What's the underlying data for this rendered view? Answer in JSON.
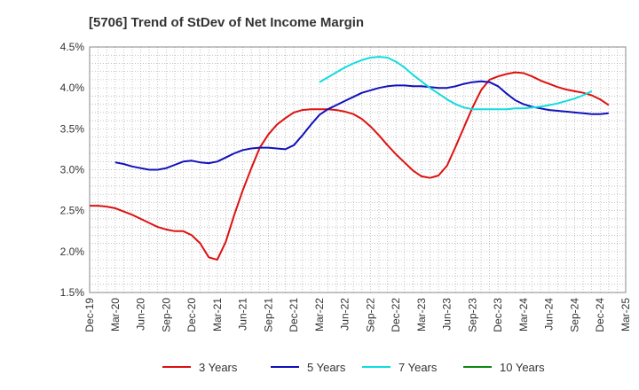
{
  "chart_data": {
    "type": "line",
    "title": "[5706]  Trend of StDev of Net Income Margin",
    "xlabel": "",
    "ylabel": "",
    "x_ticks": [
      "Dec-19",
      "Mar-20",
      "Jun-20",
      "Sep-20",
      "Dec-20",
      "Mar-21",
      "Jun-21",
      "Sep-21",
      "Dec-21",
      "Mar-22",
      "Jun-22",
      "Sep-22",
      "Dec-22",
      "Mar-23",
      "Jun-23",
      "Sep-23",
      "Dec-23",
      "Mar-24",
      "Jun-24",
      "Sep-24",
      "Dec-24",
      "Mar-25"
    ],
    "y_ticks": [
      "1.5%",
      "2.0%",
      "2.5%",
      "3.0%",
      "3.5%",
      "4.0%",
      "4.5%"
    ],
    "ylim": [
      1.5,
      4.5
    ],
    "y_unit": "%",
    "grid": true,
    "legend_position": "bottom",
    "series": [
      {
        "name": "3 Years",
        "color": "#dd1111",
        "points": [
          [
            "Dec-19",
            2.56
          ],
          [
            "Jan-20",
            2.56
          ],
          [
            "Feb-20",
            2.55
          ],
          [
            "Mar-20",
            2.53
          ],
          [
            "Apr-20",
            2.49
          ],
          [
            "May-20",
            2.45
          ],
          [
            "Jun-20",
            2.4
          ],
          [
            "Jul-20",
            2.35
          ],
          [
            "Aug-20",
            2.3
          ],
          [
            "Sep-20",
            2.27
          ],
          [
            "Oct-20",
            2.25
          ],
          [
            "Nov-20",
            2.25
          ],
          [
            "Dec-20",
            2.2
          ],
          [
            "Jan-21",
            2.1
          ],
          [
            "Feb-21",
            1.93
          ],
          [
            "Mar-21",
            1.9
          ],
          [
            "Apr-21",
            2.12
          ],
          [
            "May-21",
            2.45
          ],
          [
            "Jun-21",
            2.75
          ],
          [
            "Jul-21",
            3.02
          ],
          [
            "Aug-21",
            3.27
          ],
          [
            "Sep-21",
            3.43
          ],
          [
            "Oct-21",
            3.55
          ],
          [
            "Nov-21",
            3.63
          ],
          [
            "Dec-21",
            3.7
          ],
          [
            "Jan-22",
            3.73
          ],
          [
            "Feb-22",
            3.74
          ],
          [
            "Mar-22",
            3.74
          ],
          [
            "Apr-22",
            3.74
          ],
          [
            "May-22",
            3.73
          ],
          [
            "Jun-22",
            3.71
          ],
          [
            "Jul-22",
            3.68
          ],
          [
            "Aug-22",
            3.62
          ],
          [
            "Sep-22",
            3.53
          ],
          [
            "Oct-22",
            3.42
          ],
          [
            "Nov-22",
            3.3
          ],
          [
            "Dec-22",
            3.19
          ],
          [
            "Jan-23",
            3.09
          ],
          [
            "Feb-23",
            2.99
          ],
          [
            "Mar-23",
            2.92
          ],
          [
            "Apr-23",
            2.9
          ],
          [
            "May-23",
            2.93
          ],
          [
            "Jun-23",
            3.05
          ],
          [
            "Jul-23",
            3.28
          ],
          [
            "Aug-23",
            3.52
          ],
          [
            "Sep-23",
            3.76
          ],
          [
            "Oct-23",
            3.97
          ],
          [
            "Nov-23",
            4.1
          ],
          [
            "Dec-23",
            4.14
          ],
          [
            "Jan-24",
            4.17
          ],
          [
            "Feb-24",
            4.19
          ],
          [
            "Mar-24",
            4.18
          ],
          [
            "Apr-24",
            4.14
          ],
          [
            "May-24",
            4.09
          ],
          [
            "Jun-24",
            4.05
          ],
          [
            "Jul-24",
            4.01
          ],
          [
            "Aug-24",
            3.98
          ],
          [
            "Sep-24",
            3.96
          ],
          [
            "Oct-24",
            3.94
          ],
          [
            "Nov-24",
            3.91
          ],
          [
            "Dec-24",
            3.86
          ],
          [
            "Jan-25",
            3.79
          ]
        ]
      },
      {
        "name": "5 Years",
        "color": "#1111bb",
        "points": [
          [
            "Mar-20",
            3.09
          ],
          [
            "Apr-20",
            3.07
          ],
          [
            "May-20",
            3.04
          ],
          [
            "Jun-20",
            3.02
          ],
          [
            "Jul-20",
            3.0
          ],
          [
            "Aug-20",
            3.0
          ],
          [
            "Sep-20",
            3.02
          ],
          [
            "Oct-20",
            3.06
          ],
          [
            "Nov-20",
            3.1
          ],
          [
            "Dec-20",
            3.11
          ],
          [
            "Jan-21",
            3.09
          ],
          [
            "Feb-21",
            3.08
          ],
          [
            "Mar-21",
            3.1
          ],
          [
            "Apr-21",
            3.15
          ],
          [
            "May-21",
            3.2
          ],
          [
            "Jun-21",
            3.24
          ],
          [
            "Jul-21",
            3.26
          ],
          [
            "Aug-21",
            3.27
          ],
          [
            "Sep-21",
            3.27
          ],
          [
            "Oct-21",
            3.26
          ],
          [
            "Nov-21",
            3.25
          ],
          [
            "Dec-21",
            3.3
          ],
          [
            "Jan-22",
            3.42
          ],
          [
            "Feb-22",
            3.55
          ],
          [
            "Mar-22",
            3.67
          ],
          [
            "Apr-22",
            3.74
          ],
          [
            "May-22",
            3.79
          ],
          [
            "Jun-22",
            3.84
          ],
          [
            "Jul-22",
            3.89
          ],
          [
            "Aug-22",
            3.94
          ],
          [
            "Sep-22",
            3.97
          ],
          [
            "Oct-22",
            4.0
          ],
          [
            "Nov-22",
            4.02
          ],
          [
            "Dec-22",
            4.03
          ],
          [
            "Jan-23",
            4.03
          ],
          [
            "Feb-23",
            4.02
          ],
          [
            "Mar-23",
            4.02
          ],
          [
            "Apr-23",
            4.01
          ],
          [
            "May-23",
            4.0
          ],
          [
            "Jun-23",
            4.0
          ],
          [
            "Jul-23",
            4.02
          ],
          [
            "Aug-23",
            4.05
          ],
          [
            "Sep-23",
            4.07
          ],
          [
            "Oct-23",
            4.08
          ],
          [
            "Nov-23",
            4.07
          ],
          [
            "Dec-23",
            4.02
          ],
          [
            "Jan-24",
            3.93
          ],
          [
            "Feb-24",
            3.85
          ],
          [
            "Mar-24",
            3.8
          ],
          [
            "Apr-24",
            3.77
          ],
          [
            "May-24",
            3.75
          ],
          [
            "Jun-24",
            3.73
          ],
          [
            "Jul-24",
            3.72
          ],
          [
            "Aug-24",
            3.71
          ],
          [
            "Sep-24",
            3.7
          ],
          [
            "Oct-24",
            3.69
          ],
          [
            "Nov-24",
            3.68
          ],
          [
            "Dec-24",
            3.68
          ],
          [
            "Jan-25",
            3.69
          ]
        ]
      },
      {
        "name": "7 Years",
        "color": "#11dddd",
        "points": [
          [
            "Mar-22",
            4.07
          ],
          [
            "Apr-22",
            4.13
          ],
          [
            "May-22",
            4.19
          ],
          [
            "Jun-22",
            4.25
          ],
          [
            "Jul-22",
            4.3
          ],
          [
            "Aug-22",
            4.34
          ],
          [
            "Sep-22",
            4.37
          ],
          [
            "Oct-22",
            4.38
          ],
          [
            "Nov-22",
            4.37
          ],
          [
            "Dec-22",
            4.32
          ],
          [
            "Jan-23",
            4.25
          ],
          [
            "Feb-23",
            4.16
          ],
          [
            "Mar-23",
            4.08
          ],
          [
            "Apr-23",
            4.0
          ],
          [
            "May-23",
            3.93
          ],
          [
            "Jun-23",
            3.86
          ],
          [
            "Jul-23",
            3.8
          ],
          [
            "Aug-23",
            3.76
          ],
          [
            "Sep-23",
            3.74
          ],
          [
            "Oct-23",
            3.74
          ],
          [
            "Nov-23",
            3.74
          ],
          [
            "Dec-23",
            3.74
          ],
          [
            "Jan-24",
            3.74
          ],
          [
            "Feb-24",
            3.75
          ],
          [
            "Mar-24",
            3.75
          ],
          [
            "Apr-24",
            3.76
          ],
          [
            "May-24",
            3.77
          ],
          [
            "Jun-24",
            3.79
          ],
          [
            "Jul-24",
            3.81
          ],
          [
            "Aug-24",
            3.84
          ],
          [
            "Sep-24",
            3.87
          ],
          [
            "Oct-24",
            3.91
          ],
          [
            "Nov-24",
            3.96
          ]
        ]
      },
      {
        "name": "10 Years",
        "color": "#118811",
        "points": []
      }
    ]
  }
}
